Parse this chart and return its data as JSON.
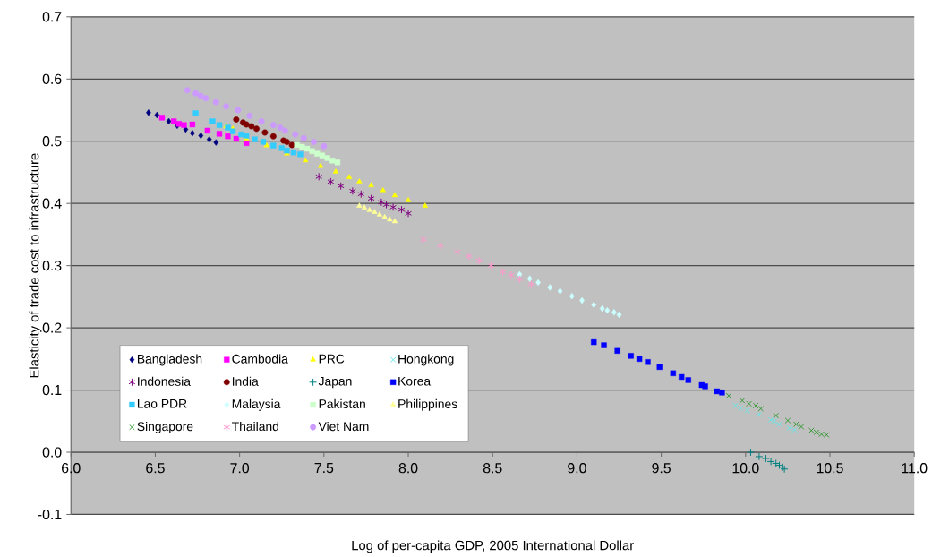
{
  "chart_data": {
    "type": "scatter",
    "xlabel": "Log of per-capita GDP, 2005 International Dollar",
    "ylabel": "Elasticity of trade cost to infrastructure",
    "xlim": [
      6,
      11
    ],
    "ylim": [
      -0.1,
      0.7
    ],
    "xticks": [
      {
        "value": 6,
        "label": "6.0"
      },
      {
        "value": 6.5,
        "label": "6.5"
      },
      {
        "value": 7,
        "label": "7.0"
      },
      {
        "value": 7.5,
        "label": "7.5"
      },
      {
        "value": 8,
        "label": "8.0"
      },
      {
        "value": 8.5,
        "label": "8.5"
      },
      {
        "value": 9,
        "label": "9.0"
      },
      {
        "value": 9.5,
        "label": "9.5"
      },
      {
        "value": 10,
        "label": "10.0"
      },
      {
        "value": 10.5,
        "label": "10.5"
      },
      {
        "value": 11,
        "label": "11.0"
      }
    ],
    "yticks": [
      {
        "value": -0.1,
        "label": "-0.1"
      },
      {
        "value": 0,
        "label": "0.0"
      },
      {
        "value": 0.1,
        "label": "0.1"
      },
      {
        "value": 0.2,
        "label": "0.2"
      },
      {
        "value": 0.3,
        "label": "0.3"
      },
      {
        "value": 0.4,
        "label": "0.4"
      },
      {
        "value": 0.5,
        "label": "0.5"
      },
      {
        "value": 0.6,
        "label": "0.6"
      },
      {
        "value": 0.7,
        "label": "0.7"
      }
    ],
    "grid": "y",
    "legend": "bottom left",
    "series": [
      {
        "name": "Bangladesh",
        "color": "#000080",
        "marker": "diamond",
        "x": [
          6.46,
          6.51,
          6.58,
          6.63,
          6.68,
          6.72,
          6.77,
          6.82,
          6.86
        ],
        "values": [
          0.546,
          0.542,
          0.532,
          0.525,
          0.519,
          0.513,
          0.509,
          0.503,
          0.498
        ]
      },
      {
        "name": "Cambodia",
        "color": "#ff00ff",
        "marker": "square",
        "x": [
          6.54,
          6.61,
          6.64,
          6.67,
          6.72,
          6.81,
          6.88,
          6.93,
          6.98,
          7.04
        ],
        "values": [
          0.538,
          0.532,
          0.528,
          0.526,
          0.527,
          0.517,
          0.512,
          0.508,
          0.504,
          0.497
        ]
      },
      {
        "name": "PRC",
        "color": "#ffff00",
        "marker": "triangle",
        "x": [
          6.92,
          6.96,
          7.04,
          7.16,
          7.28,
          7.39,
          7.48,
          7.57,
          7.65,
          7.71,
          7.78,
          7.85,
          7.92,
          8.0,
          8.1
        ],
        "values": [
          0.524,
          0.52,
          0.504,
          0.493,
          0.48,
          0.469,
          0.46,
          0.451,
          0.442,
          0.435,
          0.429,
          0.421,
          0.413,
          0.405,
          0.396
        ]
      },
      {
        "name": "Hongkong",
        "color": "#66e6e6",
        "marker": "x",
        "x": [
          9.94,
          9.97,
          10.01,
          10.08,
          10.15,
          10.17,
          10.2,
          10.26,
          10.29
        ],
        "values": [
          0.075,
          0.071,
          0.067,
          0.061,
          0.052,
          0.05,
          0.045,
          0.039,
          0.036
        ]
      },
      {
        "name": "Indonesia",
        "color": "#800080",
        "marker": "cross",
        "x": [
          7.47,
          7.54,
          7.6,
          7.67,
          7.72,
          7.78,
          7.84,
          7.87,
          7.91,
          7.96,
          8.0
        ],
        "values": [
          0.443,
          0.435,
          0.428,
          0.42,
          0.415,
          0.408,
          0.402,
          0.398,
          0.394,
          0.39,
          0.384
        ]
      },
      {
        "name": "India",
        "color": "#800000",
        "marker": "circle",
        "x": [
          6.98,
          7.02,
          7.04,
          7.07,
          7.1,
          7.15,
          7.2,
          7.26,
          7.28,
          7.31
        ],
        "values": [
          0.535,
          0.53,
          0.527,
          0.524,
          0.52,
          0.514,
          0.508,
          0.501,
          0.499,
          0.494
        ]
      },
      {
        "name": "Japan",
        "color": "#008080",
        "marker": "plus",
        "x": [
          10.03,
          10.08,
          10.12,
          10.15,
          10.18,
          10.2,
          10.22,
          10.23
        ],
        "values": [
          0.0,
          -0.007,
          -0.01,
          -0.015,
          -0.018,
          -0.021,
          -0.024,
          -0.027
        ]
      },
      {
        "name": "Korea",
        "color": "#0000ff",
        "marker": "square",
        "x": [
          9.1,
          9.16,
          9.24,
          9.32,
          9.37,
          9.42,
          9.49,
          9.57,
          9.62,
          9.66,
          9.74,
          9.76,
          9.83,
          9.86
        ],
        "values": [
          0.177,
          0.172,
          0.163,
          0.155,
          0.15,
          0.145,
          0.137,
          0.127,
          0.121,
          0.116,
          0.108,
          0.106,
          0.098,
          0.096
        ]
      },
      {
        "name": "Lao PDR",
        "color": "#33ccff",
        "marker": "square",
        "x": [
          6.74,
          6.84,
          6.88,
          6.93,
          6.96,
          7.01,
          7.04,
          7.09,
          7.14,
          7.2,
          7.25,
          7.28,
          7.32,
          7.36
        ],
        "values": [
          0.545,
          0.532,
          0.526,
          0.522,
          0.516,
          0.511,
          0.509,
          0.503,
          0.499,
          0.493,
          0.489,
          0.485,
          0.482,
          0.479
        ]
      },
      {
        "name": "Malaysia",
        "color": "#ccffff",
        "marker": "diamond",
        "x": [
          8.66,
          8.72,
          8.77,
          8.84,
          8.9,
          8.97,
          9.03,
          9.1,
          9.15,
          9.18,
          9.22,
          9.25
        ],
        "values": [
          0.286,
          0.279,
          0.273,
          0.265,
          0.259,
          0.251,
          0.244,
          0.237,
          0.231,
          0.228,
          0.225,
          0.221
        ]
      },
      {
        "name": "Pakistan",
        "color": "#ccffcc",
        "marker": "square",
        "x": [
          7.34,
          7.37,
          7.4,
          7.43,
          7.46,
          7.49,
          7.52,
          7.55,
          7.58
        ],
        "values": [
          0.494,
          0.491,
          0.488,
          0.484,
          0.48,
          0.477,
          0.473,
          0.469,
          0.466
        ]
      },
      {
        "name": "Philippines",
        "color": "#ffff99",
        "marker": "triangle",
        "x": [
          7.71,
          7.74,
          7.77,
          7.8,
          7.83,
          7.86,
          7.89,
          7.92
        ],
        "values": [
          0.396,
          0.393,
          0.389,
          0.386,
          0.382,
          0.378,
          0.374,
          0.371
        ]
      },
      {
        "name": "Singapore",
        "color": "#339933",
        "marker": "x",
        "x": [
          9.9,
          9.98,
          10.02,
          10.06,
          10.09,
          10.18,
          10.25,
          10.3,
          10.33,
          10.39,
          10.42,
          10.45,
          10.48
        ],
        "values": [
          0.091,
          0.083,
          0.078,
          0.075,
          0.07,
          0.059,
          0.051,
          0.045,
          0.041,
          0.035,
          0.032,
          0.029,
          0.028
        ]
      },
      {
        "name": "Thailand",
        "color": "#ff99cc",
        "marker": "cross",
        "x": [
          8.09,
          8.19,
          8.29,
          8.36,
          8.42,
          8.49,
          8.56,
          8.61,
          8.66,
          8.73
        ],
        "values": [
          0.342,
          0.332,
          0.322,
          0.315,
          0.308,
          0.3,
          0.29,
          0.285,
          0.278,
          0.27
        ]
      },
      {
        "name": "Viet Nam",
        "color": "#cc99ff",
        "marker": "circle",
        "x": [
          6.69,
          6.74,
          6.77,
          6.8,
          6.86,
          6.92,
          6.99,
          7.06,
          7.13,
          7.2,
          7.24,
          7.27,
          7.33,
          7.38,
          7.44,
          7.5
        ],
        "values": [
          0.582,
          0.577,
          0.573,
          0.569,
          0.563,
          0.556,
          0.55,
          0.541,
          0.532,
          0.526,
          0.522,
          0.517,
          0.511,
          0.505,
          0.499,
          0.492
        ]
      }
    ]
  }
}
